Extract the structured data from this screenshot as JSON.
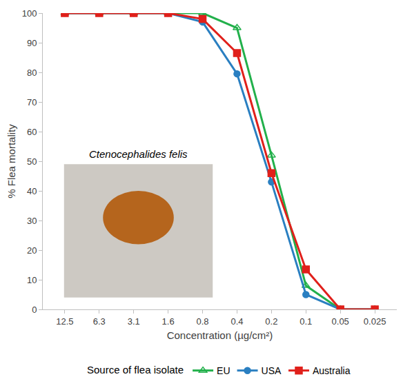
{
  "chart_data": {
    "type": "line",
    "x_label": "Concentration (µg/cm²)",
    "y_label": "% Flea mortality",
    "categories": [
      "12.5",
      "6.3",
      "3.1",
      "1.6",
      "0.8",
      "0.4",
      "0.2",
      "0.1",
      "0.05",
      "0.025"
    ],
    "series": [
      {
        "name": "EU",
        "color": "#22b04b",
        "marker": "triangle-open",
        "values": [
          100,
          100,
          100,
          100,
          100,
          95,
          52,
          8,
          0,
          0
        ]
      },
      {
        "name": "USA",
        "color": "#2a7fc1",
        "marker": "circle",
        "values": [
          100,
          100,
          100,
          100,
          97,
          79.5,
          43,
          5,
          0,
          0
        ]
      },
      {
        "name": "Australia",
        "color": "#e0201b",
        "marker": "square",
        "values": [
          100,
          100,
          100,
          100,
          98,
          86.5,
          46,
          13.5,
          0,
          0
        ]
      }
    ],
    "legend_title": "Source of flea isolate",
    "annotations": [
      "Ctenocephalides felis"
    ],
    "ylim": [
      0,
      100
    ],
    "yticks": [
      0,
      10,
      20,
      30,
      40,
      50,
      60,
      70,
      80,
      90,
      100
    ],
    "grid": false,
    "legend": "bottom"
  }
}
